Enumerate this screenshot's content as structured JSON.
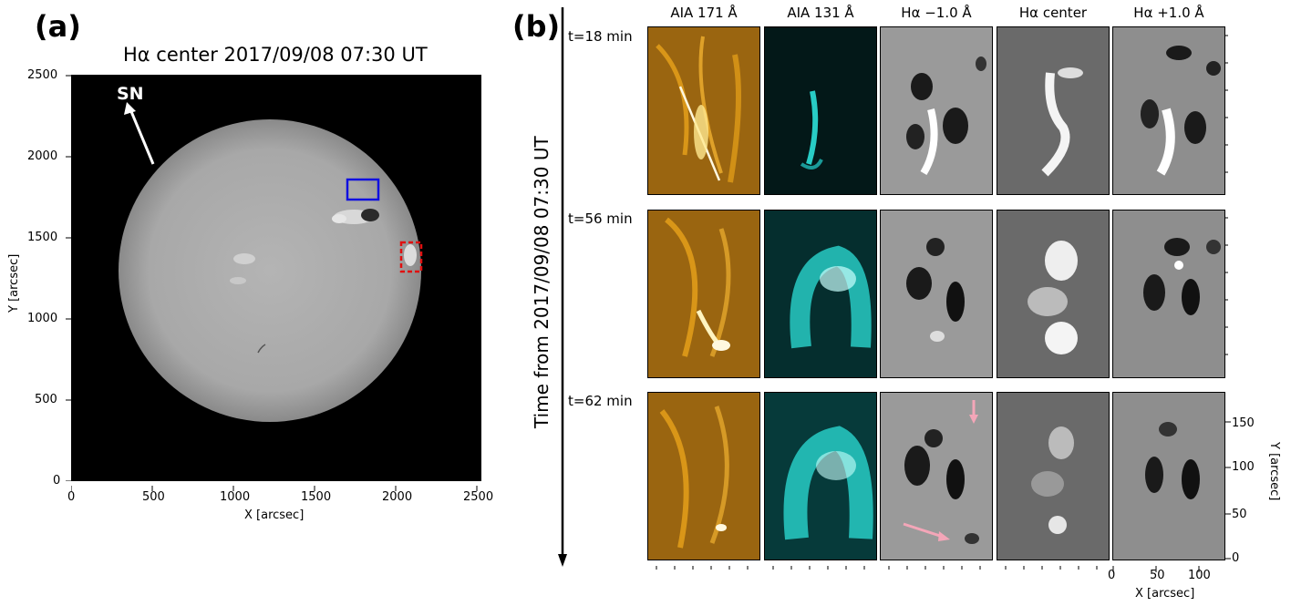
{
  "panel_a": {
    "label": "(a)",
    "title": "Hα center 2017/09/08 07:30 UT",
    "sn_label": "SN",
    "xlabel": "X [arcsec]",
    "ylabel": "Y [arcsec]",
    "xticks": [
      "0",
      "500",
      "1000",
      "1500",
      "2000",
      "2500"
    ],
    "yticks": [
      "0",
      "500",
      "1000",
      "1500",
      "2000",
      "2500"
    ],
    "colors": {
      "solid_box": "#1010e0",
      "dashed_box": "#e01010"
    }
  },
  "panel_b": {
    "label": "(b)",
    "time_axis_label": "Time from 2017/09/08 07:30 UT",
    "columns": [
      "AIA 171 Å",
      "AIA 131 Å",
      "Hα −1.0 Å",
      "Hα center",
      "Hα +1.0 Å"
    ],
    "rows": [
      "t=18 min",
      "t=56 min",
      "t=62 min"
    ],
    "xlabel": "X [arcsec]",
    "ylabel": "Y [arcsec]",
    "xticks": [
      "0",
      "50",
      "100"
    ],
    "yticks": [
      "0",
      "50",
      "100",
      "150"
    ],
    "colors": {
      "aia171": "#e8a21a",
      "aia131": "#2ce0d8",
      "arrow": "#f4a6b8"
    }
  }
}
